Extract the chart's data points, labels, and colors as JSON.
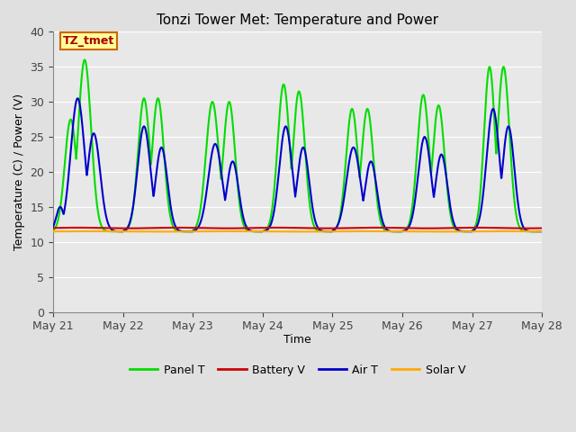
{
  "title": "Tonzi Tower Met: Temperature and Power",
  "xlabel": "Time",
  "ylabel": "Temperature (C) / Power (V)",
  "xlim": [
    0,
    7
  ],
  "ylim": [
    0,
    40
  ],
  "yticks": [
    0,
    5,
    10,
    15,
    20,
    25,
    30,
    35,
    40
  ],
  "xtick_labels": [
    "May 21",
    "May 22",
    "May 23",
    "May 24",
    "May 25",
    "May 26",
    "May 27",
    "May 28"
  ],
  "xtick_positions": [
    0,
    1,
    2,
    3,
    4,
    5,
    6,
    7
  ],
  "fig_bg_color": "#e0e0e0",
  "plot_bg_color": "#e8e8e8",
  "annotation_text": "TZ_tmet",
  "annotation_color": "#aa0000",
  "annotation_bg": "#ffff99",
  "annotation_border": "#cc6600",
  "panel_T_color": "#00dd00",
  "battery_V_color": "#cc0000",
  "air_T_color": "#0000cc",
  "solar_V_color": "#ffaa00",
  "line_width": 1.5,
  "legend_labels": [
    "Panel T",
    "Battery V",
    "Air T",
    "Solar V"
  ],
  "battery_V_level": 12.0,
  "solar_V_level": 11.5
}
